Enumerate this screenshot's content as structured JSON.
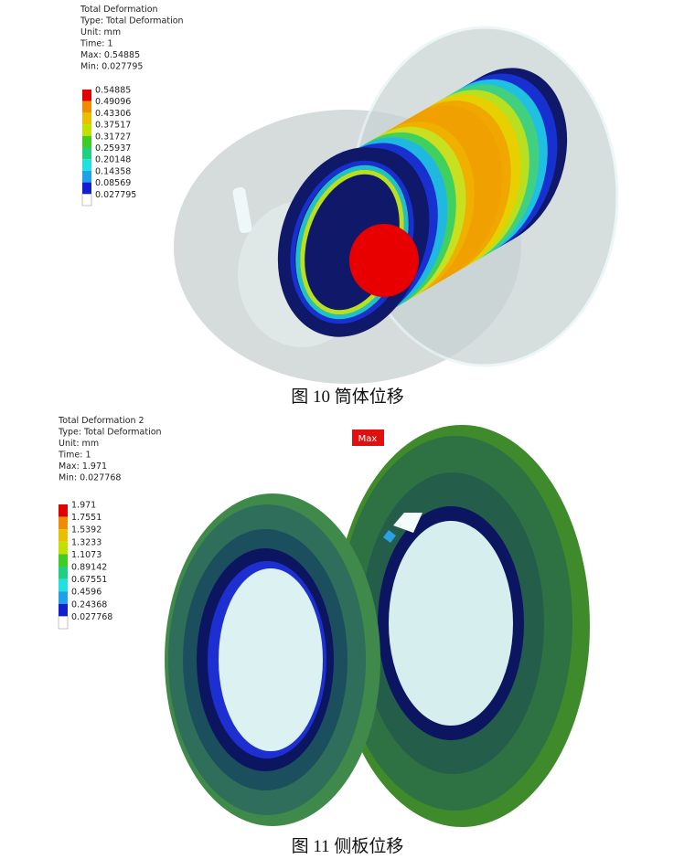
{
  "figures": [
    {
      "info": [
        "Total Deformation",
        "Type: Total Deformation",
        "Unit: mm",
        "Time: 1",
        "Max: 0.54885",
        "Min: 0.027795"
      ],
      "legend": [
        "0.54885",
        "0.49096",
        "0.43306",
        "0.37517",
        "0.31727",
        "0.25937",
        "0.20148",
        "0.14358",
        "0.08569",
        "0.027795"
      ],
      "caption": "图 10  筒体位移"
    },
    {
      "info": [
        "Total Deformation 2",
        "Type: Total Deformation",
        "Unit: mm",
        "Time: 1",
        "Max: 1.971",
        "Min: 0.027768"
      ],
      "legend": [
        "1.971",
        "1.7551",
        "1.5392",
        "1.3233",
        "1.1073",
        "0.89142",
        "0.67551",
        "0.4596",
        "0.24368",
        "0.027768"
      ],
      "max_tag": "Max",
      "caption": "图 11  侧板位移"
    }
  ]
}
